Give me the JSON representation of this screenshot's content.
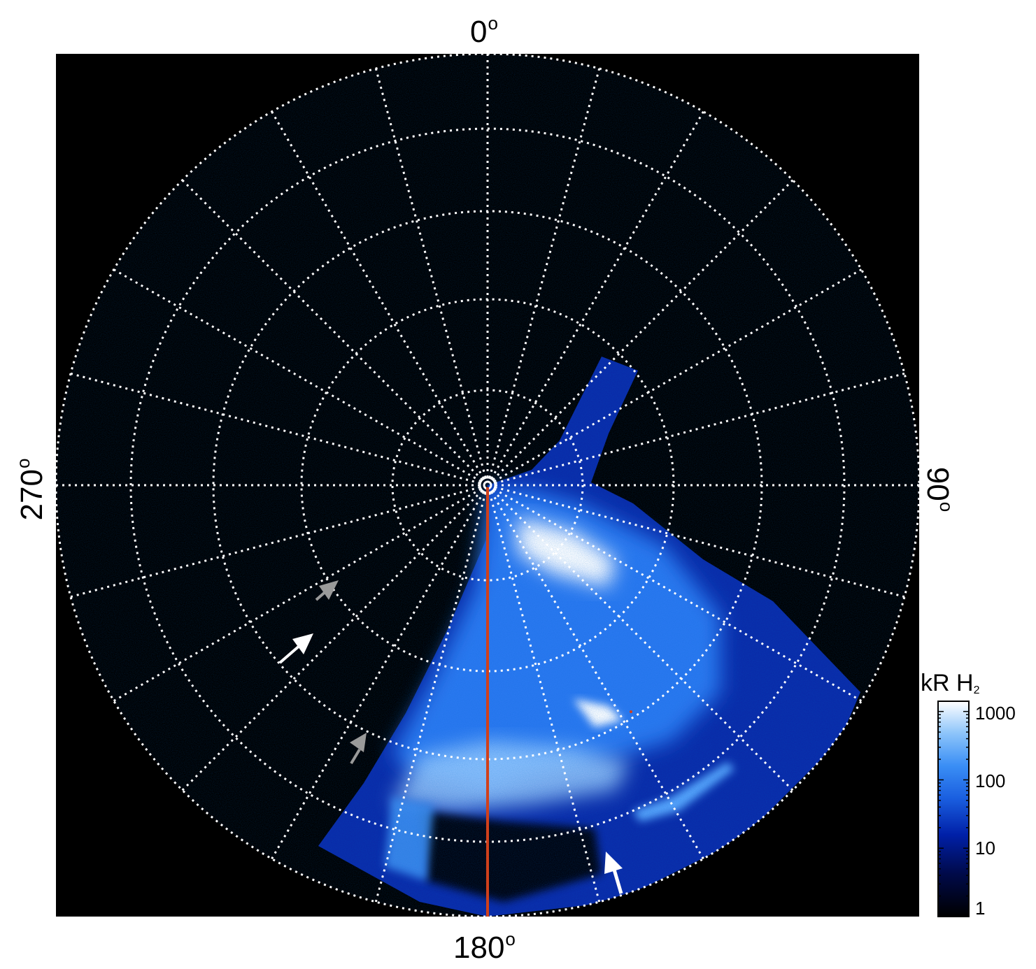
{
  "axis_labels": {
    "top": "0",
    "right": "90",
    "bottom": "180",
    "left": "270",
    "degree_symbol": "o"
  },
  "colorbar": {
    "title": "kR H",
    "title_subscript": "2",
    "ticks": [
      "1000",
      "100",
      "10",
      "1"
    ],
    "colors": [
      "#000000",
      "#000a4a",
      "#0020a8",
      "#1a5fe0",
      "#3a8ef5",
      "#8cc4fa",
      "#ffffff"
    ]
  },
  "colors": {
    "background": "#000000",
    "grid": "#ffffff",
    "meridian_line": "#d0401b",
    "arrow_white": "#ffffff",
    "arrow_grey": "#9a9a9a"
  }
}
